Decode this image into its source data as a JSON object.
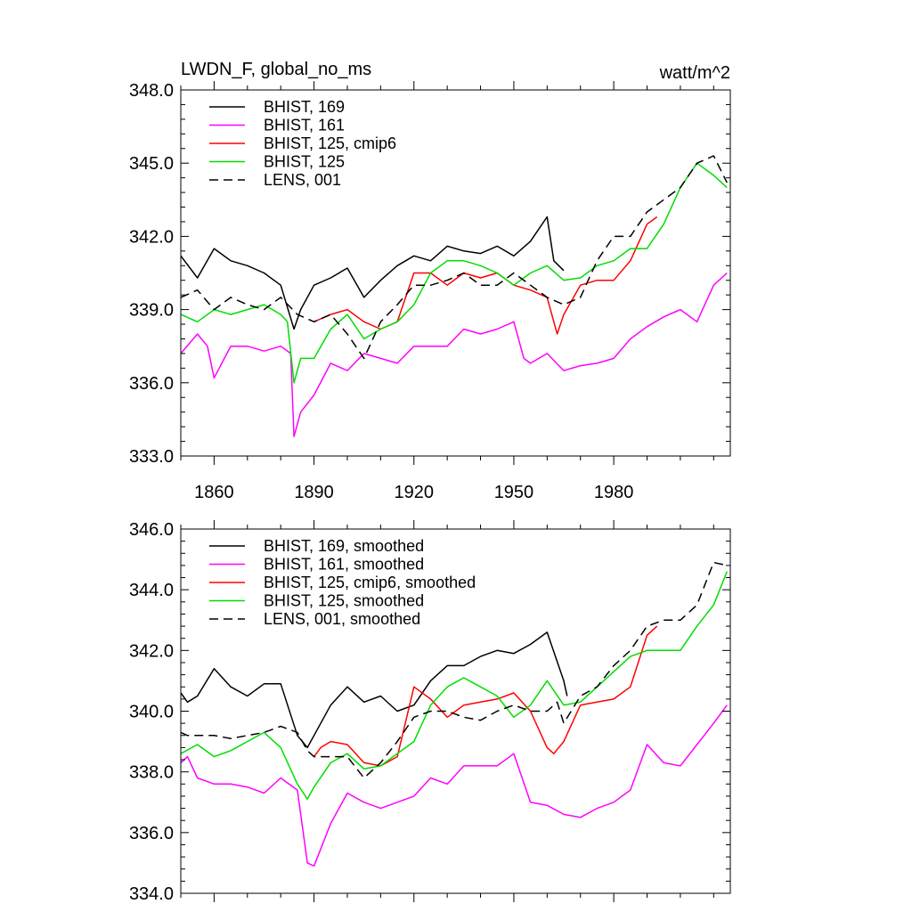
{
  "chart_data": [
    {
      "type": "line",
      "title": "LWDN_F, global_no_ms",
      "units": "watt/m^2",
      "xlim": [
        1850,
        2015
      ],
      "ylim": [
        333.0,
        348.0
      ],
      "y_ticks": [
        333.0,
        336.0,
        339.0,
        342.0,
        345.0,
        348.0
      ],
      "y_tick_labels": [
        "333.0",
        "336.0",
        "339.0",
        "342.0",
        "345.0",
        "348.0"
      ],
      "x_ticks": [
        1860,
        1890,
        1920,
        1950,
        1980
      ],
      "x_tick_labels": [
        "1860",
        "1890",
        "1920",
        "1950",
        "1980"
      ],
      "legend_position": "top-left",
      "series": [
        {
          "name": "BHIST, 169",
          "color": "#000000",
          "dash": "solid",
          "x": [
            1850,
            1855,
            1860,
            1865,
            1870,
            1875,
            1880,
            1884,
            1886,
            1890,
            1895,
            1900,
            1905,
            1910,
            1915,
            1920,
            1925,
            1930,
            1935,
            1940,
            1945,
            1950,
            1955,
            1960,
            1962,
            1965
          ],
          "y": [
            341.2,
            340.3,
            341.5,
            341.0,
            340.8,
            340.5,
            340.0,
            338.2,
            339.0,
            340.0,
            340.3,
            340.7,
            339.5,
            340.2,
            340.8,
            341.2,
            341.0,
            341.6,
            341.4,
            341.3,
            341.6,
            341.2,
            341.8,
            342.8,
            341.0,
            340.6
          ]
        },
        {
          "name": "BHIST, 161",
          "color": "#ff00ff",
          "dash": "solid",
          "x": [
            1850,
            1855,
            1858,
            1860,
            1865,
            1870,
            1875,
            1880,
            1883,
            1884,
            1886,
            1890,
            1895,
            1900,
            1905,
            1910,
            1915,
            1920,
            1925,
            1930,
            1935,
            1940,
            1945,
            1950,
            1953,
            1955,
            1960,
            1965,
            1970,
            1975,
            1980,
            1985,
            1990,
            1995,
            2000,
            2005,
            2010,
            2014
          ],
          "y": [
            337.2,
            338.0,
            337.5,
            336.2,
            337.5,
            337.5,
            337.3,
            337.5,
            337.2,
            333.8,
            334.8,
            335.5,
            336.8,
            336.5,
            337.2,
            337.0,
            336.8,
            337.5,
            337.5,
            337.5,
            338.2,
            338.0,
            338.2,
            338.5,
            337.0,
            336.8,
            337.2,
            336.5,
            336.7,
            336.8,
            337.0,
            337.8,
            338.3,
            338.7,
            339.0,
            338.5,
            340.0,
            340.5
          ]
        },
        {
          "name": "BHIST, 125, cmip6",
          "color": "#ff0000",
          "dash": "solid",
          "x": [
            1890,
            1895,
            1900,
            1905,
            1910,
            1915,
            1920,
            1925,
            1930,
            1935,
            1940,
            1945,
            1950,
            1955,
            1960,
            1963,
            1965,
            1970,
            1975,
            1980,
            1985,
            1990,
            1993
          ],
          "y": [
            338.5,
            338.8,
            339.0,
            338.5,
            338.2,
            338.5,
            340.5,
            340.5,
            340.0,
            340.5,
            340.3,
            340.5,
            340.0,
            339.8,
            339.5,
            338.0,
            338.8,
            340.0,
            340.2,
            340.2,
            341.0,
            342.5,
            342.8
          ]
        },
        {
          "name": "BHIST, 125",
          "color": "#00dd00",
          "dash": "solid",
          "x": [
            1850,
            1855,
            1860,
            1865,
            1870,
            1875,
            1880,
            1882,
            1884,
            1886,
            1890,
            1895,
            1900,
            1905,
            1910,
            1915,
            1920,
            1925,
            1930,
            1935,
            1940,
            1945,
            1950,
            1955,
            1960,
            1965,
            1970,
            1975,
            1980,
            1985,
            1990,
            1995,
            2000,
            2005,
            2010,
            2014
          ],
          "y": [
            338.8,
            338.5,
            339.0,
            338.8,
            339.0,
            339.2,
            338.8,
            338.5,
            336.0,
            337.0,
            337.0,
            338.2,
            338.8,
            337.8,
            338.2,
            338.5,
            339.2,
            340.5,
            341.0,
            341.0,
            340.8,
            340.5,
            340.0,
            340.5,
            340.8,
            340.2,
            340.3,
            340.8,
            341.0,
            341.5,
            341.5,
            342.5,
            344.0,
            345.0,
            344.5,
            344.0
          ]
        },
        {
          "name": "LENS, 001",
          "color": "#000000",
          "dash": "dashed",
          "x": [
            1850,
            1855,
            1860,
            1865,
            1870,
            1875,
            1880,
            1885,
            1890,
            1895,
            1900,
            1905,
            1910,
            1915,
            1920,
            1925,
            1930,
            1935,
            1940,
            1945,
            1950,
            1955,
            1960,
            1965,
            1970,
            1975,
            1980,
            1985,
            1990,
            1995,
            2000,
            2005,
            2010,
            2014
          ],
          "y": [
            339.5,
            339.8,
            339.0,
            339.5,
            339.2,
            339.0,
            339.5,
            338.8,
            338.5,
            338.8,
            338.0,
            337.0,
            338.5,
            339.2,
            340.0,
            340.0,
            340.2,
            340.5,
            340.0,
            340.0,
            340.5,
            340.0,
            339.5,
            339.2,
            339.5,
            341.0,
            342.0,
            342.0,
            343.0,
            343.5,
            344.0,
            345.0,
            345.3,
            344.2
          ]
        }
      ]
    },
    {
      "type": "line",
      "title": "",
      "xlim": [
        1850,
        2015
      ],
      "ylim": [
        334.0,
        346.0
      ],
      "y_ticks": [
        334.0,
        336.0,
        338.0,
        340.0,
        342.0,
        344.0,
        346.0
      ],
      "y_tick_labels": [
        "334.0",
        "336.0",
        "338.0",
        "340.0",
        "342.0",
        "344.0",
        "346.0"
      ],
      "x_ticks": [
        1860,
        1890,
        1920,
        1950,
        1980
      ],
      "legend_position": "top-left",
      "series": [
        {
          "name": "BHIST, 169, smoothed",
          "color": "#000000",
          "dash": "solid",
          "x": [
            1850,
            1852,
            1855,
            1860,
            1865,
            1870,
            1875,
            1880,
            1885,
            1888,
            1890,
            1895,
            1900,
            1905,
            1910,
            1915,
            1920,
            1925,
            1930,
            1935,
            1940,
            1945,
            1950,
            1955,
            1960,
            1965,
            1966
          ],
          "y": [
            340.6,
            340.3,
            340.5,
            341.4,
            340.8,
            340.5,
            340.9,
            340.9,
            339.2,
            338.8,
            339.2,
            340.2,
            340.8,
            340.3,
            340.5,
            340.0,
            340.2,
            341.0,
            341.5,
            341.5,
            341.8,
            342.0,
            341.9,
            342.2,
            342.6,
            341.0,
            340.5
          ]
        },
        {
          "name": "BHIST, 161, smoothed",
          "color": "#ff00ff",
          "dash": "solid",
          "x": [
            1850,
            1852,
            1855,
            1860,
            1865,
            1870,
            1875,
            1880,
            1885,
            1888,
            1890,
            1895,
            1900,
            1905,
            1910,
            1915,
            1920,
            1925,
            1930,
            1935,
            1940,
            1945,
            1950,
            1955,
            1960,
            1965,
            1970,
            1975,
            1980,
            1985,
            1990,
            1995,
            2000,
            2005,
            2010,
            2014
          ],
          "y": [
            338.3,
            338.5,
            337.8,
            337.6,
            337.6,
            337.5,
            337.3,
            337.8,
            337.4,
            335.0,
            334.9,
            336.3,
            337.3,
            337.0,
            336.8,
            337.0,
            337.2,
            337.8,
            337.6,
            338.2,
            338.2,
            338.2,
            338.6,
            337.0,
            336.9,
            336.6,
            336.5,
            336.8,
            337.0,
            337.4,
            338.9,
            338.3,
            338.2,
            338.9,
            339.6,
            340.2
          ]
        },
        {
          "name": "BHIST, 125, cmip6, smoothed",
          "color": "#ff0000",
          "dash": "solid",
          "x": [
            1890,
            1892,
            1895,
            1900,
            1905,
            1910,
            1915,
            1920,
            1925,
            1930,
            1935,
            1940,
            1945,
            1950,
            1955,
            1960,
            1962,
            1965,
            1970,
            1975,
            1980,
            1985,
            1990,
            1993
          ],
          "y": [
            338.5,
            338.8,
            339.0,
            338.9,
            338.3,
            338.2,
            338.5,
            340.8,
            340.4,
            339.8,
            340.2,
            340.3,
            340.4,
            340.6,
            340.0,
            338.8,
            338.6,
            339.0,
            340.2,
            340.3,
            340.4,
            340.8,
            342.5,
            342.8
          ]
        },
        {
          "name": "BHIST, 125, smoothed",
          "color": "#00dd00",
          "dash": "solid",
          "x": [
            1850,
            1855,
            1860,
            1865,
            1870,
            1875,
            1880,
            1885,
            1888,
            1890,
            1895,
            1900,
            1905,
            1910,
            1915,
            1920,
            1925,
            1930,
            1935,
            1940,
            1945,
            1950,
            1955,
            1960,
            1965,
            1970,
            1975,
            1980,
            1985,
            1990,
            1995,
            2000,
            2005,
            2010,
            2014
          ],
          "y": [
            338.6,
            338.9,
            338.5,
            338.7,
            339.0,
            339.3,
            338.8,
            337.6,
            337.1,
            337.5,
            338.3,
            338.6,
            338.1,
            338.2,
            338.6,
            339.0,
            340.2,
            340.8,
            341.1,
            340.8,
            340.5,
            339.8,
            340.2,
            341.0,
            340.2,
            340.3,
            340.8,
            341.3,
            341.8,
            342.0,
            342.0,
            342.0,
            342.8,
            343.5,
            344.6
          ]
        },
        {
          "name": "LENS, 001, smoothed",
          "color": "#000000",
          "dash": "dashed",
          "x": [
            1850,
            1852,
            1855,
            1860,
            1865,
            1870,
            1875,
            1880,
            1885,
            1888,
            1890,
            1895,
            1900,
            1905,
            1910,
            1915,
            1920,
            1925,
            1930,
            1935,
            1940,
            1945,
            1950,
            1955,
            1960,
            1963,
            1965,
            1970,
            1975,
            1980,
            1985,
            1990,
            1995,
            2000,
            2005,
            2010,
            2014
          ],
          "y": [
            339.3,
            339.2,
            339.2,
            339.2,
            339.1,
            339.2,
            339.3,
            339.5,
            339.3,
            338.7,
            338.5,
            338.5,
            338.5,
            337.8,
            338.3,
            339.0,
            339.8,
            340.0,
            340.0,
            339.8,
            339.7,
            340.0,
            340.2,
            340.0,
            340.0,
            340.3,
            339.6,
            340.5,
            340.8,
            341.5,
            342.0,
            342.8,
            343.0,
            343.0,
            343.5,
            344.9,
            344.8
          ]
        }
      ]
    }
  ]
}
